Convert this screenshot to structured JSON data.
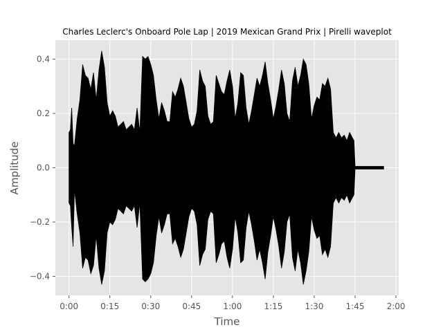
{
  "chart_data": {
    "type": "line",
    "title": "Charles Leclerc's Onboard Pole Lap | 2019 Mexican Grand Prix | Pirelli waveplot",
    "xlabel": "Time",
    "ylabel": "Amplitude",
    "xlim": [
      -5,
      121
    ],
    "ylim": [
      -0.47,
      0.47
    ],
    "grid": true,
    "x_ticks": [
      {
        "value": 0,
        "label": "0:00"
      },
      {
        "value": 15,
        "label": "0:15"
      },
      {
        "value": 30,
        "label": "0:30"
      },
      {
        "value": 45,
        "label": "0:45"
      },
      {
        "value": 60,
        "label": "1:00"
      },
      {
        "value": 75,
        "label": "1:15"
      },
      {
        "value": 90,
        "label": "1:30"
      },
      {
        "value": 105,
        "label": "1:45"
      },
      {
        "value": 120,
        "label": "2:00"
      }
    ],
    "y_ticks": [
      {
        "value": 0.4,
        "label": "0.4"
      },
      {
        "value": 0.2,
        "label": "0.2"
      },
      {
        "value": 0.0,
        "label": "0.0"
      },
      {
        "value": -0.2,
        "label": "−0.2"
      },
      {
        "value": -0.4,
        "label": "−0.4"
      }
    ],
    "series": [
      {
        "color": "#000000",
        "envelope_x": [
          0,
          0.5,
          1,
          1.5,
          2,
          3,
          4,
          5,
          6,
          7,
          8,
          9,
          10,
          11,
          12,
          13,
          14,
          15,
          16,
          17,
          18,
          19,
          20,
          21,
          22,
          23,
          24,
          25,
          26,
          27,
          28,
          29,
          30,
          31,
          32,
          33,
          34,
          35,
          36,
          37,
          38,
          39,
          40,
          41,
          42,
          43,
          44,
          45,
          46,
          47,
          48,
          49,
          50,
          51,
          52,
          53,
          54,
          55,
          56,
          57,
          58,
          59,
          60,
          61,
          62,
          63,
          64,
          65,
          66,
          67,
          68,
          69,
          70,
          71,
          72,
          73,
          74,
          75,
          76,
          77,
          78,
          79,
          80,
          81,
          82,
          83,
          84,
          85,
          86,
          87,
          88,
          89,
          90,
          91,
          92,
          93,
          94,
          95,
          96,
          97,
          98,
          99,
          100,
          101,
          102,
          103,
          104,
          104.6,
          105,
          115.5
        ],
        "envelope_max": [
          0.13,
          0.14,
          0.22,
          0.09,
          0.08,
          0.18,
          0.25,
          0.38,
          0.34,
          0.33,
          0.29,
          0.35,
          0.25,
          0.36,
          0.43,
          0.37,
          0.24,
          0.19,
          0.21,
          0.19,
          0.15,
          0.16,
          0.17,
          0.14,
          0.15,
          0.16,
          0.14,
          0.22,
          0.13,
          0.41,
          0.4,
          0.41,
          0.38,
          0.34,
          0.25,
          0.18,
          0.24,
          0.21,
          0.17,
          0.17,
          0.28,
          0.26,
          0.29,
          0.33,
          0.3,
          0.24,
          0.18,
          0.15,
          0.16,
          0.21,
          0.36,
          0.32,
          0.3,
          0.19,
          0.16,
          0.17,
          0.34,
          0.31,
          0.28,
          0.27,
          0.32,
          0.36,
          0.3,
          0.18,
          0.24,
          0.35,
          0.34,
          0.22,
          0.16,
          0.21,
          0.27,
          0.33,
          0.3,
          0.34,
          0.39,
          0.31,
          0.25,
          0.18,
          0.23,
          0.29,
          0.36,
          0.31,
          0.2,
          0.17,
          0.32,
          0.37,
          0.3,
          0.34,
          0.4,
          0.38,
          0.31,
          0.18,
          0.23,
          0.26,
          0.25,
          0.31,
          0.3,
          0.33,
          0.29,
          0.13,
          0.11,
          0.13,
          0.11,
          0.12,
          0.1,
          0.13,
          0.11,
          0.1,
          0.005,
          0.005
        ],
        "envelope_min": [
          -0.13,
          -0.14,
          -0.22,
          -0.29,
          -0.08,
          -0.17,
          -0.24,
          -0.37,
          -0.33,
          -0.34,
          -0.39,
          -0.36,
          -0.25,
          -0.37,
          -0.43,
          -0.38,
          -0.24,
          -0.2,
          -0.21,
          -0.19,
          -0.15,
          -0.16,
          -0.17,
          -0.14,
          -0.15,
          -0.16,
          -0.14,
          -0.22,
          -0.13,
          -0.41,
          -0.42,
          -0.41,
          -0.39,
          -0.35,
          -0.25,
          -0.18,
          -0.24,
          -0.21,
          -0.17,
          -0.17,
          -0.28,
          -0.26,
          -0.29,
          -0.33,
          -0.3,
          -0.24,
          -0.18,
          -0.15,
          -0.16,
          -0.21,
          -0.36,
          -0.32,
          -0.3,
          -0.19,
          -0.16,
          -0.17,
          -0.35,
          -0.32,
          -0.28,
          -0.27,
          -0.33,
          -0.37,
          -0.3,
          -0.18,
          -0.24,
          -0.35,
          -0.34,
          -0.22,
          -0.16,
          -0.21,
          -0.27,
          -0.34,
          -0.3,
          -0.35,
          -0.41,
          -0.31,
          -0.25,
          -0.18,
          -0.23,
          -0.29,
          -0.37,
          -0.31,
          -0.2,
          -0.17,
          -0.33,
          -0.38,
          -0.3,
          -0.35,
          -0.43,
          -0.38,
          -0.31,
          -0.18,
          -0.23,
          -0.26,
          -0.25,
          -0.32,
          -0.3,
          -0.33,
          -0.29,
          -0.13,
          -0.11,
          -0.13,
          -0.11,
          -0.12,
          -0.1,
          -0.13,
          -0.11,
          -0.1,
          -0.005,
          -0.005
        ]
      }
    ]
  }
}
